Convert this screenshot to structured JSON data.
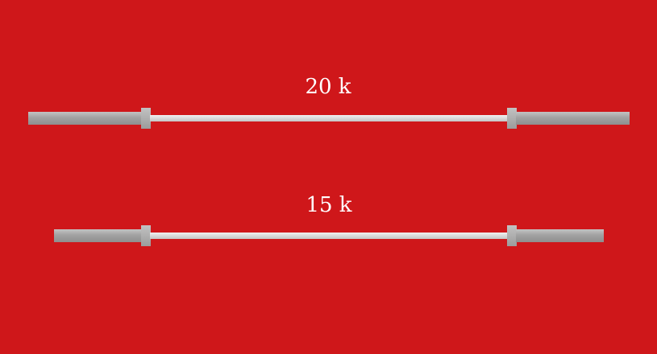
{
  "bars": [
    {
      "label": "20 k"
    },
    {
      "label": "15 k"
    }
  ],
  "colors": {
    "background": "#cf171a",
    "label": "#ffffff",
    "sleeve": "#a2a2a2",
    "shaft": "#d8d8d8"
  }
}
